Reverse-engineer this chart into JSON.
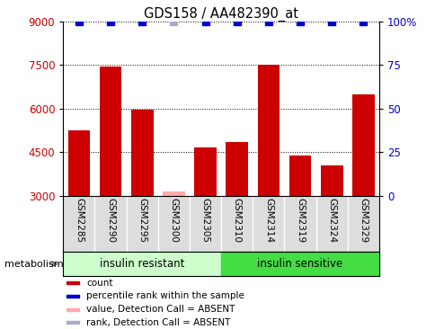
{
  "title": "GDS158 / AA482390_at",
  "samples": [
    "GSM2285",
    "GSM2290",
    "GSM2295",
    "GSM2300",
    "GSM2305",
    "GSM2310",
    "GSM2314",
    "GSM2319",
    "GSM2324",
    "GSM2329"
  ],
  "values": [
    5250,
    7450,
    5950,
    3150,
    4650,
    4850,
    7500,
    4400,
    4050,
    6500
  ],
  "absent_flags": [
    false,
    false,
    false,
    true,
    false,
    false,
    false,
    false,
    false,
    false
  ],
  "ranks": [
    100,
    100,
    100,
    100,
    100,
    100,
    100,
    100,
    100,
    100
  ],
  "rank_absent_flags": [
    false,
    false,
    false,
    true,
    false,
    false,
    false,
    false,
    false,
    false
  ],
  "bar_color": "#cc0000",
  "bar_absent_color": "#ffaaaa",
  "rank_color": "#0000cc",
  "rank_absent_color": "#aaaacc",
  "ylim_left": [
    3000,
    9000
  ],
  "ylim_right": [
    0,
    100
  ],
  "yticks_left": [
    3000,
    4500,
    6000,
    7500,
    9000
  ],
  "yticks_right": [
    0,
    25,
    50,
    75,
    100
  ],
  "ytick_labels_right": [
    "0",
    "25",
    "50",
    "75",
    "100%"
  ],
  "gridlines": [
    4500,
    6000,
    7500,
    9000
  ],
  "group1_label": "insulin resistant",
  "group2_label": "insulin sensitive",
  "group1_count": 5,
  "group2_count": 5,
  "group1_color": "#ccffcc",
  "group2_color": "#44dd44",
  "metabolism_label": "metabolism",
  "legend_items": [
    {
      "label": "count",
      "color": "#cc0000"
    },
    {
      "label": "percentile rank within the sample",
      "color": "#0000cc"
    },
    {
      "label": "value, Detection Call = ABSENT",
      "color": "#ffaaaa"
    },
    {
      "label": "rank, Detection Call = ABSENT",
      "color": "#aaaacc"
    }
  ],
  "bar_width": 0.7,
  "rank_marker_size": 6,
  "tick_label_color_left": "#cc0000",
  "tick_label_color_right": "#0000cc",
  "tick_bg_color": "#dddddd",
  "tick_sep_color": "#ffffff"
}
